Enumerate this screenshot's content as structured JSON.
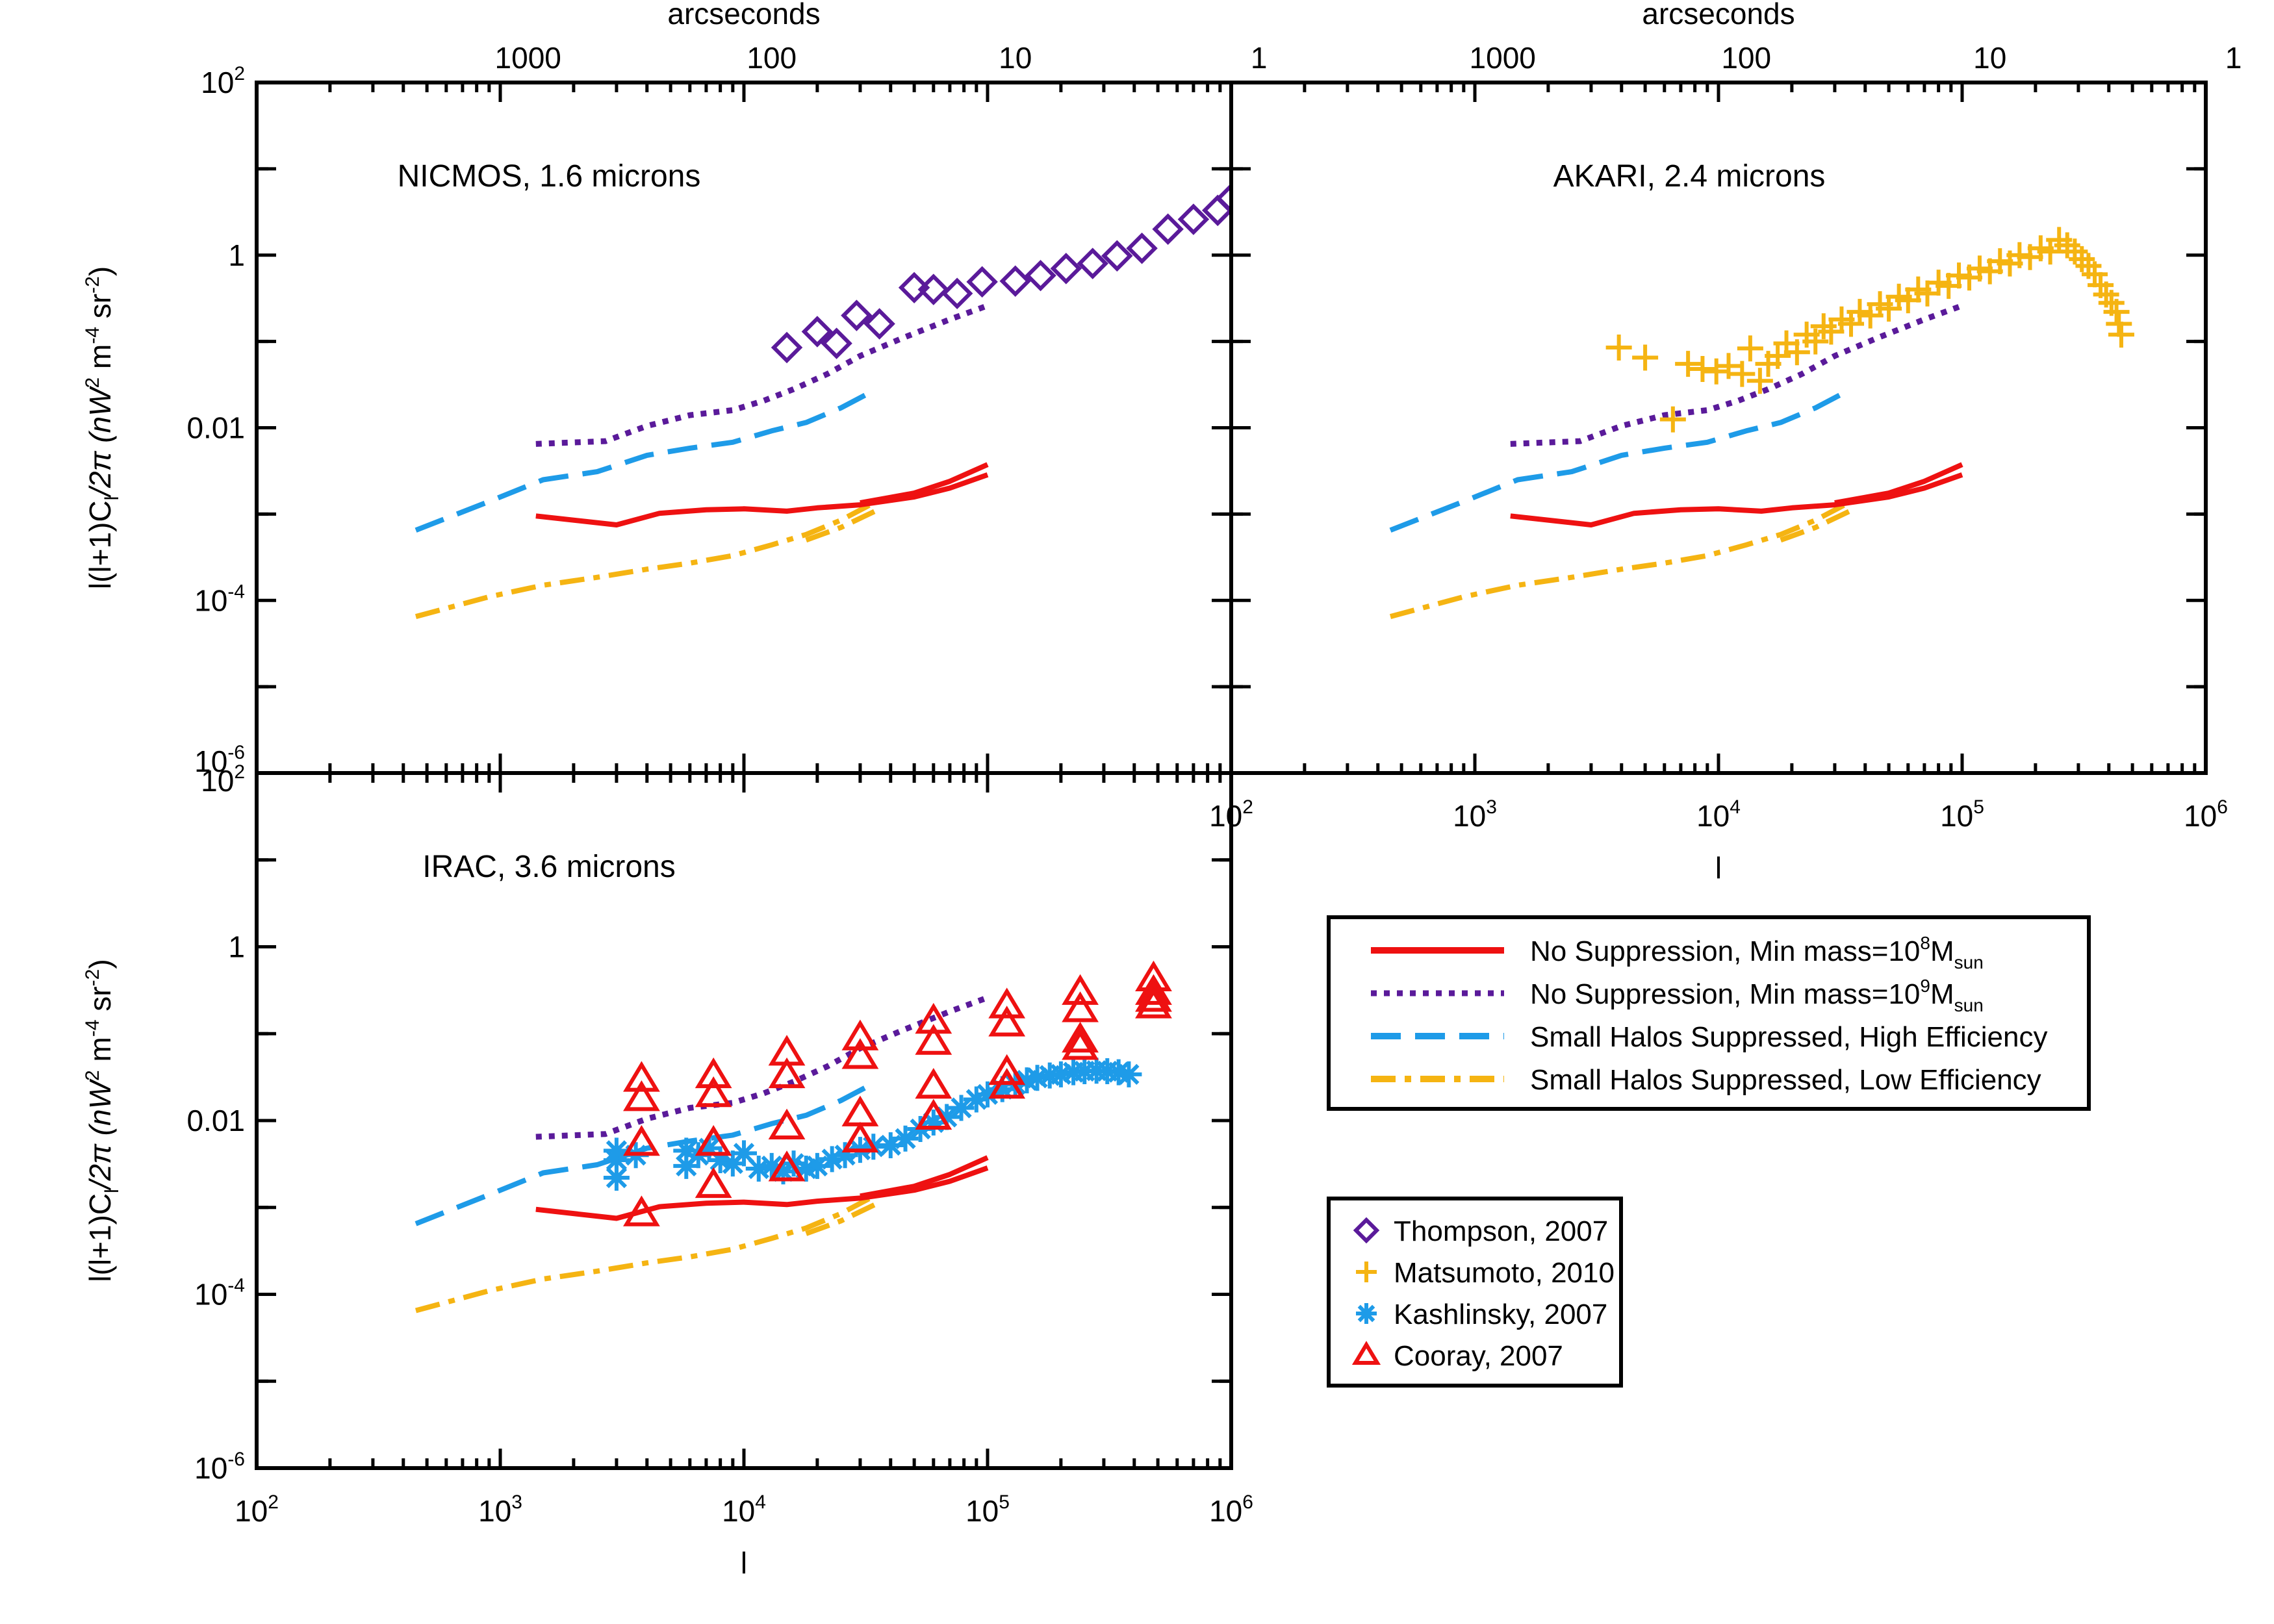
{
  "figure": {
    "top_axis_label": "arcseconds",
    "bottom_axis_label": "l",
    "y_axis_label_main": "l(l+1)C",
    "y_axis_label_sub": "l",
    "y_axis_label_tail": "/2π  (nW",
    "y_axis_label_units": "m",
    "y_axis_label_sr": "sr",
    "y_axis_label_close": ")",
    "y_axis_label_sup2": "2",
    "y_axis_label_supm4": "-4",
    "y_axis_label_supm2": "-2"
  },
  "colors": {
    "no_supp_8": "#ee1111",
    "no_supp_9": "#5a1a9a",
    "high_eff": "#1e9be8",
    "low_eff": "#f5b412",
    "thompson": "#5a1a9a",
    "matsumoto": "#f5b412",
    "kashlinsky": "#1e9be8",
    "cooray": "#ee1111"
  },
  "legend_models": [
    {
      "key": "no_supp_8",
      "label": "No Suppression, Min mass=10",
      "sup": "8",
      "tail": "M",
      "sub": "sun"
    },
    {
      "key": "no_supp_9",
      "label": "No Suppression, Min mass=10",
      "sup": "9",
      "tail": "M",
      "sub": "sun"
    },
    {
      "key": "high_eff",
      "label": "Small Halos Suppressed, High Efficiency",
      "sup": "",
      "tail": "",
      "sub": ""
    },
    {
      "key": "low_eff",
      "label": "Small Halos Suppressed, Low Efficiency",
      "sup": "",
      "tail": "",
      "sub": ""
    }
  ],
  "legend_data": [
    {
      "key": "thompson",
      "label": "Thompson, 2007",
      "symbol": "diamond"
    },
    {
      "key": "matsumoto",
      "label": "Matsumoto, 2010",
      "symbol": "plus"
    },
    {
      "key": "kashlinsky",
      "label": "Kashlinsky, 2007",
      "symbol": "asterisk"
    },
    {
      "key": "cooray",
      "label": "Cooray, 2007",
      "symbol": "triangle"
    }
  ],
  "chart_data": {
    "type": "line",
    "xscale": "log",
    "yscale": "log",
    "xlim": [
      100,
      1000000
    ],
    "ylim": [
      1e-06,
      100
    ],
    "xlabel": "l",
    "ylabel": "l(l+1)C_l/2π (nW^2 m^-4 sr^-2)",
    "x_tick_values": [
      100,
      1000,
      10000,
      100000,
      1000000
    ],
    "x_tick_labels": [
      {
        "base": "10",
        "exp": "2"
      },
      {
        "base": "10",
        "exp": "3"
      },
      {
        "base": "10",
        "exp": "4"
      },
      {
        "base": "10",
        "exp": "5"
      },
      {
        "base": "10",
        "exp": "6"
      }
    ],
    "y_tick_values": [
      1e-06,
      0.0001,
      0.01,
      1,
      100
    ],
    "y_tick_labels": [
      {
        "base": "10",
        "exp": "-6"
      },
      {
        "base": "10",
        "exp": "-4"
      },
      {
        "base": "",
        "exp": "",
        "text": "0.01"
      },
      {
        "base": "",
        "exp": "",
        "text": "1"
      },
      {
        "base": "10",
        "exp": "2"
      }
    ],
    "top_axis": {
      "label": "arcseconds",
      "ticks": [
        {
          "label": "1000",
          "l": 1300
        },
        {
          "label": "100",
          "l": 13000
        },
        {
          "label": "10",
          "l": 130000
        },
        {
          "label": "1",
          "l": 1300000
        }
      ]
    },
    "models": {
      "no_supp_8": {
        "line": "solid",
        "curves": [
          {
            "x": [
              1400,
              3000,
              4500,
              7000,
              10000,
              15000,
              20000,
              30000,
              50000,
              70000,
              100000
            ],
            "y": [
              0.00095,
              0.00075,
              0.00102,
              0.00112,
              0.00115,
              0.00108,
              0.00118,
              0.00128,
              0.00158,
              0.002,
              0.00285
            ]
          },
          {
            "x": [
              30000,
              50000,
              70000,
              100000
            ],
            "y": [
              0.00135,
              0.00175,
              0.0024,
              0.00375
            ]
          }
        ]
      },
      "no_supp_9": {
        "line": "dotted",
        "curves": [
          {
            "x": [
              1400,
              2700,
              4000,
              6000,
              9000,
              12000,
              16000,
              22000,
              30000,
              45000,
              70000,
              100000
            ],
            "y": [
              0.0065,
              0.007,
              0.0105,
              0.014,
              0.016,
              0.0205,
              0.028,
              0.042,
              0.068,
              0.11,
              0.18,
              0.26
            ]
          }
        ]
      },
      "high_eff": {
        "line": "dashed",
        "curves": [
          {
            "x": [
              450,
              900,
              1500,
              2500,
              4000,
              6000,
              9000,
              13000,
              18000,
              25000,
              35000
            ],
            "y": [
              0.00065,
              0.0014,
              0.0025,
              0.0031,
              0.0048,
              0.0058,
              0.0068,
              0.0092,
              0.0115,
              0.017,
              0.028
            ]
          }
        ]
      },
      "low_eff": {
        "line": "dashdot",
        "curves": [
          {
            "x": [
              450,
              900,
              1500,
              2500,
              4000,
              6000,
              9000,
              13000,
              18000,
              25000,
              35000
            ],
            "y": [
              6.5e-05,
              0.00011,
              0.00015,
              0.000185,
              0.00023,
              0.00027,
              0.00033,
              0.00044,
              0.00058,
              0.00085,
              0.0014
            ]
          },
          {
            "x": [
              18000,
              25000,
              35000
            ],
            "y": [
              0.0005,
              0.0007,
              0.0011
            ]
          }
        ]
      }
    },
    "panels": [
      {
        "title": "NICMOS, 1.6 microns",
        "x_axis_labels": false,
        "data_sets": [
          {
            "key": "thompson",
            "symbol": "diamond",
            "points": [
              {
                "x": 15000,
                "y": 0.085
              },
              {
                "x": 20000,
                "y": 0.13
              },
              {
                "x": 24000,
                "y": 0.095
              },
              {
                "x": 29000,
                "y": 0.2
              },
              {
                "x": 36000,
                "y": 0.16
              },
              {
                "x": 50000,
                "y": 0.42
              },
              {
                "x": 60000,
                "y": 0.4
              },
              {
                "x": 75000,
                "y": 0.36
              },
              {
                "x": 95000,
                "y": 0.49
              },
              {
                "x": 130000,
                "y": 0.5
              },
              {
                "x": 165000,
                "y": 0.58
              },
              {
                "x": 210000,
                "y": 0.7
              },
              {
                "x": 270000,
                "y": 0.8
              },
              {
                "x": 340000,
                "y": 0.98
              },
              {
                "x": 430000,
                "y": 1.2
              },
              {
                "x": 550000,
                "y": 2.0
              },
              {
                "x": 700000,
                "y": 2.6
              },
              {
                "x": 880000,
                "y": 3.3
              },
              {
                "x": 1000000,
                "y": 4.5
              }
            ]
          }
        ]
      },
      {
        "title": "AKARI, 2.4 microns",
        "x_axis_labels": true,
        "data_sets": [
          {
            "key": "matsumoto",
            "symbol": "plus",
            "points": [
              {
                "x": 3900,
                "y": 0.085
              },
              {
                "x": 5000,
                "y": 0.065
              },
              {
                "x": 6500,
                "y": 0.0125
              },
              {
                "x": 7500,
                "y": 0.055
              },
              {
                "x": 8600,
                "y": 0.048
              },
              {
                "x": 9800,
                "y": 0.045
              },
              {
                "x": 11000,
                "y": 0.052
              },
              {
                "x": 12500,
                "y": 0.042
              },
              {
                "x": 13500,
                "y": 0.083
              },
              {
                "x": 14800,
                "y": 0.035
              },
              {
                "x": 16000,
                "y": 0.055
              },
              {
                "x": 17500,
                "y": 0.068
              },
              {
                "x": 19000,
                "y": 0.095
              },
              {
                "x": 21000,
                "y": 0.075
              },
              {
                "x": 23000,
                "y": 0.12
              },
              {
                "x": 25000,
                "y": 0.1
              },
              {
                "x": 27000,
                "y": 0.15
              },
              {
                "x": 29000,
                "y": 0.13
              },
              {
                "x": 32000,
                "y": 0.18
              },
              {
                "x": 35000,
                "y": 0.16
              },
              {
                "x": 38000,
                "y": 0.22
              },
              {
                "x": 42000,
                "y": 0.2
              },
              {
                "x": 46000,
                "y": 0.27
              },
              {
                "x": 50000,
                "y": 0.24
              },
              {
                "x": 55000,
                "y": 0.33
              },
              {
                "x": 60000,
                "y": 0.3
              },
              {
                "x": 66000,
                "y": 0.4
              },
              {
                "x": 72000,
                "y": 0.36
              },
              {
                "x": 80000,
                "y": 0.48
              },
              {
                "x": 88000,
                "y": 0.44
              },
              {
                "x": 97000,
                "y": 0.58
              },
              {
                "x": 107000,
                "y": 0.55
              },
              {
                "x": 118000,
                "y": 0.7
              },
              {
                "x": 130000,
                "y": 0.65
              },
              {
                "x": 143000,
                "y": 0.85
              },
              {
                "x": 157000,
                "y": 0.8
              },
              {
                "x": 172000,
                "y": 1.0
              },
              {
                "x": 190000,
                "y": 0.95
              },
              {
                "x": 210000,
                "y": 1.2
              },
              {
                "x": 230000,
                "y": 1.1
              },
              {
                "x": 250000,
                "y": 1.5
              },
              {
                "x": 270000,
                "y": 1.3
              },
              {
                "x": 290000,
                "y": 1.1
              },
              {
                "x": 310000,
                "y": 0.9
              },
              {
                "x": 330000,
                "y": 0.75
              },
              {
                "x": 350000,
                "y": 0.6
              },
              {
                "x": 370000,
                "y": 0.45
              },
              {
                "x": 390000,
                "y": 0.35
              },
              {
                "x": 410000,
                "y": 0.28
              },
              {
                "x": 430000,
                "y": 0.22
              },
              {
                "x": 440000,
                "y": 0.16
              },
              {
                "x": 450000,
                "y": 0.12
              }
            ]
          }
        ]
      },
      {
        "title": "IRAC, 3.6 microns",
        "x_axis_labels": true,
        "data_sets": [
          {
            "key": "kashlinsky",
            "symbol": "asterisk",
            "points": [
              {
                "x": 3000,
                "y": 0.0035
              },
              {
                "x": 3000,
                "y": 0.0045
              },
              {
                "x": 3000,
                "y": 0.0022
              },
              {
                "x": 3600,
                "y": 0.004
              },
              {
                "x": 5800,
                "y": 0.0045
              },
              {
                "x": 5800,
                "y": 0.003
              },
              {
                "x": 6500,
                "y": 0.004
              },
              {
                "x": 7200,
                "y": 0.0048
              },
              {
                "x": 8000,
                "y": 0.0035
              },
              {
                "x": 9000,
                "y": 0.0032
              },
              {
                "x": 10000,
                "y": 0.0042
              },
              {
                "x": 11500,
                "y": 0.0028
              },
              {
                "x": 13000,
                "y": 0.003
              },
              {
                "x": 14500,
                "y": 0.0026
              },
              {
                "x": 16000,
                "y": 0.0032
              },
              {
                "x": 18000,
                "y": 0.0028
              },
              {
                "x": 20000,
                "y": 0.003
              },
              {
                "x": 23000,
                "y": 0.0036
              },
              {
                "x": 26000,
                "y": 0.004
              },
              {
                "x": 30000,
                "y": 0.0046
              },
              {
                "x": 34000,
                "y": 0.005
              },
              {
                "x": 40000,
                "y": 0.0052
              },
              {
                "x": 46000,
                "y": 0.0062
              },
              {
                "x": 53000,
                "y": 0.008
              },
              {
                "x": 60000,
                "y": 0.0095
              },
              {
                "x": 68000,
                "y": 0.011
              },
              {
                "x": 78000,
                "y": 0.014
              },
              {
                "x": 90000,
                "y": 0.0175
              },
              {
                "x": 100000,
                "y": 0.02
              },
              {
                "x": 115000,
                "y": 0.023
              },
              {
                "x": 130000,
                "y": 0.026
              },
              {
                "x": 145000,
                "y": 0.029
              },
              {
                "x": 160000,
                "y": 0.031
              },
              {
                "x": 180000,
                "y": 0.033
              },
              {
                "x": 200000,
                "y": 0.034
              },
              {
                "x": 225000,
                "y": 0.036
              },
              {
                "x": 250000,
                "y": 0.037
              },
              {
                "x": 280000,
                "y": 0.0375
              },
              {
                "x": 310000,
                "y": 0.037
              },
              {
                "x": 345000,
                "y": 0.036
              },
              {
                "x": 380000,
                "y": 0.034
              }
            ]
          },
          {
            "key": "cooray",
            "symbol": "triangle",
            "points": [
              {
                "x": 3800,
                "y": 0.03
              },
              {
                "x": 3800,
                "y": 0.018
              },
              {
                "x": 3800,
                "y": 0.0055
              },
              {
                "x": 3800,
                "y": 0.00085
              },
              {
                "x": 7500,
                "y": 0.033
              },
              {
                "x": 7500,
                "y": 0.02
              },
              {
                "x": 7500,
                "y": 0.0055
              },
              {
                "x": 7500,
                "y": 0.0018
              },
              {
                "x": 15000,
                "y": 0.06
              },
              {
                "x": 15000,
                "y": 0.033
              },
              {
                "x": 15000,
                "y": 0.0085
              },
              {
                "x": 15000,
                "y": 0.0028
              },
              {
                "x": 30000,
                "y": 0.09
              },
              {
                "x": 30000,
                "y": 0.055
              },
              {
                "x": 30000,
                "y": 0.012
              },
              {
                "x": 30000,
                "y": 0.006
              },
              {
                "x": 60000,
                "y": 0.14
              },
              {
                "x": 60000,
                "y": 0.08
              },
              {
                "x": 60000,
                "y": 0.025
              },
              {
                "x": 60000,
                "y": 0.011
              },
              {
                "x": 120000,
                "y": 0.21
              },
              {
                "x": 120000,
                "y": 0.13
              },
              {
                "x": 120000,
                "y": 0.036
              },
              {
                "x": 120000,
                "y": 0.025
              },
              {
                "x": 240000,
                "y": 0.3
              },
              {
                "x": 240000,
                "y": 0.19
              },
              {
                "x": 240000,
                "y": 0.085
              },
              {
                "x": 240000,
                "y": 0.07
              },
              {
                "x": 480000,
                "y": 0.43
              },
              {
                "x": 480000,
                "y": 0.3
              },
              {
                "x": 480000,
                "y": 0.25
              },
              {
                "x": 480000,
                "y": 0.21
              }
            ]
          }
        ]
      }
    ]
  }
}
